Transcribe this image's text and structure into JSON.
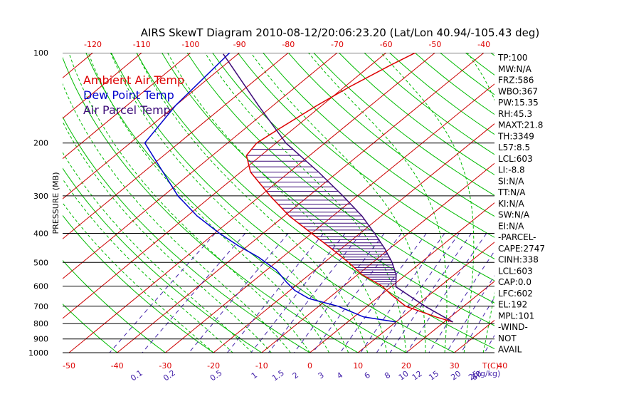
{
  "title": "AIRS SkewT Diagram 2010-08-12/20:06:23.20 (Lat/Lon 40.94/-105.43 deg)",
  "legend": [
    {
      "label": "Ambient Air Temp",
      "color": "#dd0000"
    },
    {
      "label": "Dew Point Temp",
      "color": "#0000cc"
    },
    {
      "label": "Air Parcel Temp",
      "color": "#3c0a78"
    }
  ],
  "colors": {
    "isotherm": "#cc0000",
    "dry_adiabat": "#00bb00",
    "moist_adiabat": "#00bb00",
    "mixing_ratio": "#4422aa",
    "isobar": "#000000",
    "cape_hatch": "#3c0a78"
  },
  "indices": [
    "TP:100",
    "MW:N/A",
    "FRZ:586",
    "WBO:367",
    "PW:15.35",
    "RH:45.3",
    "MAXT:21.8",
    "TH:3349",
    "L57:8.5",
    "LCL:603",
    "LI:-8.8",
    "SI:N/A",
    "TT:N/A",
    "KI:N/A",
    "SW:N/A",
    "EI:N/A",
    "-PARCEL-",
    "CAPE:2747",
    "CINH:338",
    "LCL:603",
    "CAP:0.0",
    "LFC:602",
    "EL:192",
    "MPL:101",
    "-WIND-",
    "NOT",
    "AVAIL"
  ],
  "chart_data": {
    "type": "line",
    "title": "AIRS SkewT Diagram 2010-08-12/20:06:23.20 (Lat/Lon 40.94/-105.43 deg)",
    "ylabel": "PRESSURE (MB)",
    "xlabel": "T(C)",
    "mixing_ratio_unit": "(g/kg)",
    "y_log_scale": true,
    "ylim": [
      1000,
      100
    ],
    "xlim_bottom": [
      -50,
      40
    ],
    "pressure_ticks": [
      100,
      200,
      300,
      400,
      500,
      600,
      700,
      800,
      900,
      1000
    ],
    "temp_ticks_bottom": [
      -50,
      -40,
      -30,
      -20,
      -10,
      0,
      10,
      20,
      30,
      40
    ],
    "temp_ticks_top": [
      -120,
      -110,
      -100,
      -90,
      -80,
      -70,
      -60,
      -50,
      -40
    ],
    "mixing_ratio_labels": [
      "0.1",
      "0.2",
      "0.5",
      "1",
      "1.5",
      "2",
      "3",
      "4",
      "6",
      "8",
      "10",
      "12",
      "15",
      "20",
      "25",
      "30",
      "40"
    ],
    "mixing_ratio_values": [
      0.1,
      0.2,
      0.5,
      1,
      1.5,
      2,
      3,
      4,
      6,
      8,
      10,
      12,
      15,
      20,
      25,
      30,
      40
    ],
    "series": [
      {
        "name": "Ambient Air Temp",
        "pressure": [
          790,
          760,
          700,
          640,
          600,
          550,
          500,
          450,
          400,
          350,
          300,
          250,
          220,
          200,
          180,
          150,
          130,
          110,
          100
        ],
        "temperature": [
          21.8,
          17,
          8,
          2,
          -2,
          -9,
          -15,
          -22,
          -30,
          -39,
          -48,
          -58,
          -63,
          -64,
          -63,
          -61,
          -59,
          -56,
          -54
        ]
      },
      {
        "name": "Dew Point Temp",
        "pressure": [
          790,
          760,
          700,
          660,
          620,
          580,
          530,
          480,
          440,
          400,
          350,
          300,
          250,
          200,
          150,
          100
        ],
        "temperature": [
          10,
          2,
          -6,
          -14,
          -19,
          -23,
          -28,
          -35,
          -42,
          -49,
          -58,
          -67,
          -76,
          -87,
          -90,
          -92
        ]
      },
      {
        "name": "Air Parcel Temp",
        "pressure": [
          790,
          700,
          603,
          550,
          500,
          450,
          400,
          350,
          300,
          250,
          200,
          150,
          101
        ],
        "temperature": [
          21.8,
          12,
          1,
          -2,
          -6,
          -11,
          -17,
          -24,
          -33,
          -44,
          -58,
          -73,
          -93
        ]
      }
    ]
  }
}
